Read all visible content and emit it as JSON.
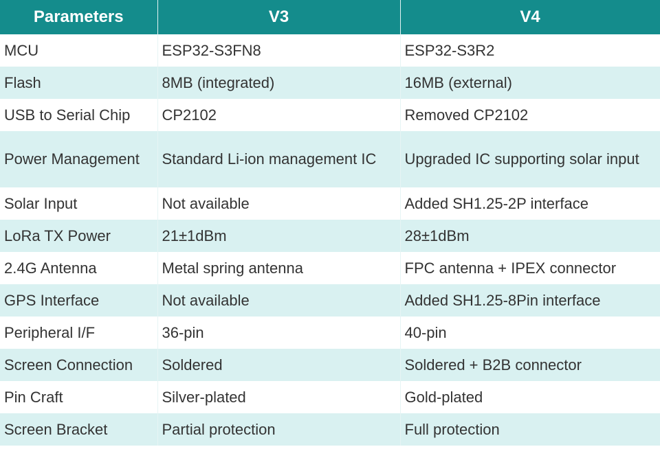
{
  "table": {
    "header": [
      "Parameters",
      "V3",
      "V4"
    ],
    "rows": [
      [
        "MCU",
        "ESP32-S3FN8",
        "ESP32-S3R2"
      ],
      [
        "Flash",
        "8MB (integrated)",
        "16MB (external)"
      ],
      [
        "USB to Serial Chip",
        "CP2102",
        "Removed CP2102"
      ],
      [
        "Power Management",
        "Standard Li-ion management IC",
        "Upgraded IC supporting solar input"
      ],
      [
        "Solar Input",
        "Not available",
        "Added SH1.25-2P interface"
      ],
      [
        "LoRa TX Power",
        "21±1dBm",
        "28±1dBm"
      ],
      [
        "2.4G Antenna",
        "Metal spring antenna",
        "FPC antenna + IPEX connector"
      ],
      [
        "GPS Interface",
        "Not available",
        "Added SH1.25-8Pin interface"
      ],
      [
        "Peripheral I/F",
        "36-pin",
        "40-pin"
      ],
      [
        "Screen Connection",
        "Soldered",
        "Soldered + B2B connector"
      ],
      [
        "Pin Craft",
        "Silver-plated",
        "Gold-plated"
      ],
      [
        "Screen Bracket",
        "Partial protection",
        "Full protection"
      ]
    ]
  }
}
